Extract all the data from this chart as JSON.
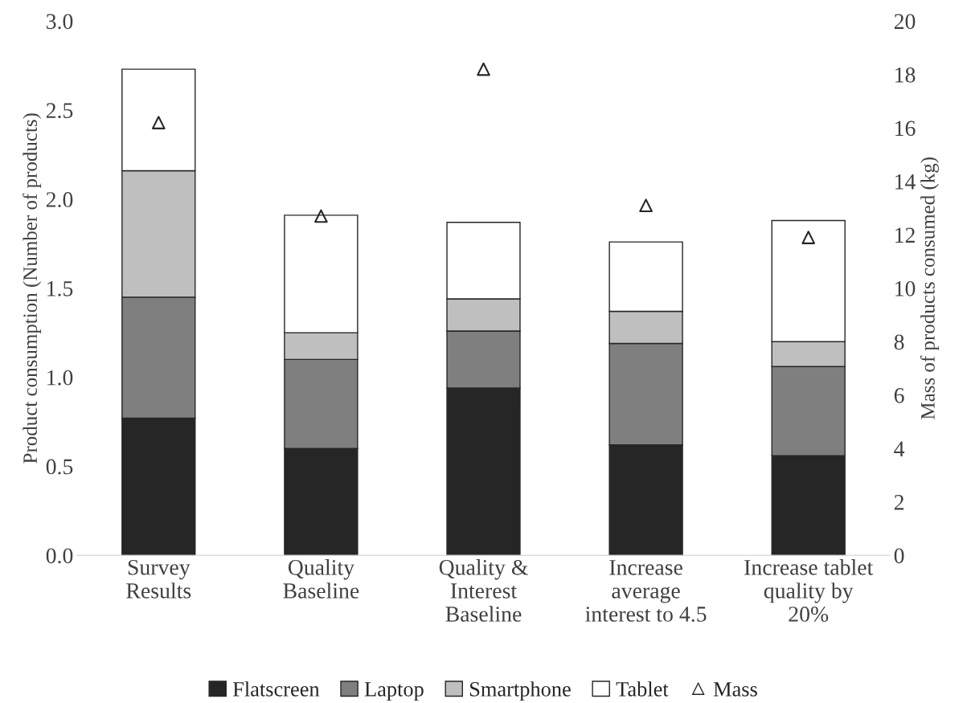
{
  "chart_data": {
    "type": "bar",
    "stacked": true,
    "ylabel": "Product consumption (Number of products)",
    "y2label": "Mass of products consumed (kg)",
    "categories": [
      "Survey\nResults",
      "Quality\nBaseline",
      "Quality &\nInterest\nBaseline",
      "Increase\naverage\ninterest to 4.5",
      "Increase tablet\nquality by\n20%"
    ],
    "series": [
      {
        "name": "Flatscreen",
        "color": "#262626",
        "values": [
          0.77,
          0.6,
          0.94,
          0.62,
          0.56
        ]
      },
      {
        "name": "Laptop",
        "color": "#7f7f7f",
        "values": [
          0.68,
          0.5,
          0.32,
          0.57,
          0.5
        ]
      },
      {
        "name": "Smartphone",
        "color": "#bfbfbf",
        "values": [
          0.71,
          0.15,
          0.18,
          0.18,
          0.14
        ]
      },
      {
        "name": "Tablet",
        "color": "#ffffff",
        "values": [
          0.57,
          0.66,
          0.43,
          0.39,
          0.68
        ]
      },
      {
        "name": "Mass",
        "type": "scatter",
        "axis": "y2",
        "marker": "triangle",
        "color": "#262626",
        "values": [
          16.2,
          12.7,
          18.2,
          13.1,
          11.9
        ]
      }
    ],
    "ylim": [
      0,
      3
    ],
    "yticks": [
      {
        "value": 0,
        "label": "0.0"
      },
      {
        "value": 0.5,
        "label": "0.5"
      },
      {
        "value": 1,
        "label": "1.0"
      },
      {
        "value": 1.5,
        "label": "1.5"
      },
      {
        "value": 2,
        "label": "2.0"
      },
      {
        "value": 2.5,
        "label": "2.5"
      },
      {
        "value": 3,
        "label": "3.0"
      }
    ],
    "y2lim": [
      0,
      20
    ],
    "y2ticks": [
      0,
      2,
      4,
      6,
      8,
      10,
      12,
      14,
      16,
      18,
      20
    ],
    "legend": "bottom",
    "grid": false
  }
}
